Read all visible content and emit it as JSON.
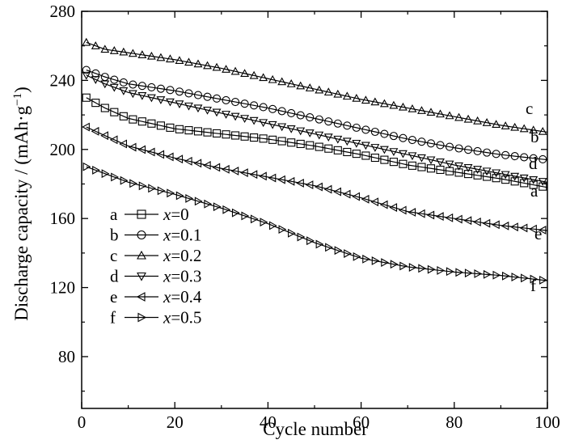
{
  "chart_data": {
    "type": "line",
    "xlabel": "Cycle number",
    "ylabel": "Discharge capacity / (mAh·g",
    "ylabel_sup": "−1",
    "ylabel_close": ")",
    "xlim": [
      0,
      100
    ],
    "ylim": [
      50,
      280
    ],
    "xticks": [
      0,
      20,
      40,
      60,
      80,
      100
    ],
    "yticks": [
      80,
      120,
      160,
      200,
      240,
      280
    ],
    "grid": false,
    "legend_position": "left-middle",
    "series": [
      {
        "label": "a",
        "x_prefix": "x",
        "x_value": "=0",
        "marker": "square",
        "curve_label": "a",
        "x": [
          1,
          5,
          10,
          20,
          30,
          40,
          50,
          60,
          70,
          80,
          90,
          100
        ],
        "y": [
          230,
          224,
          218,
          212,
          209,
          206,
          202,
          197,
          191,
          187,
          183,
          178
        ]
      },
      {
        "label": "b",
        "x_prefix": "x",
        "x_value": "=0.1",
        "marker": "circle",
        "curve_label": "b",
        "x": [
          1,
          5,
          10,
          20,
          30,
          40,
          50,
          60,
          70,
          80,
          90,
          100
        ],
        "y": [
          246,
          242,
          238,
          234,
          229,
          224,
          218,
          212,
          206,
          201,
          197,
          194
        ]
      },
      {
        "label": "c",
        "x_prefix": "x",
        "x_value": "=0.2",
        "marker": "triangle-up",
        "curve_label": "c",
        "x": [
          1,
          5,
          10,
          20,
          30,
          40,
          50,
          60,
          70,
          80,
          90,
          100
        ],
        "y": [
          262,
          258,
          256,
          252,
          247,
          241,
          235,
          229,
          224,
          219,
          214,
          210
        ]
      },
      {
        "label": "d",
        "x_prefix": "x",
        "x_value": "=0.3",
        "marker": "triangle-down",
        "curve_label": "d",
        "x": [
          1,
          5,
          10,
          20,
          30,
          40,
          50,
          60,
          70,
          80,
          90,
          100
        ],
        "y": [
          243,
          238,
          233,
          227,
          221,
          215,
          209,
          203,
          197,
          191,
          186,
          181
        ]
      },
      {
        "label": "e",
        "x_prefix": "x",
        "x_value": "=0.4",
        "marker": "triangle-left",
        "curve_label": "e",
        "x": [
          1,
          5,
          10,
          20,
          30,
          40,
          50,
          60,
          70,
          80,
          90,
          100
        ],
        "y": [
          213,
          208,
          202,
          195,
          189,
          184,
          179,
          172,
          164,
          160,
          156,
          153
        ]
      },
      {
        "label": "f",
        "x_prefix": "x",
        "x_value": "=0.5",
        "marker": "triangle-right",
        "curve_label": "f",
        "x": [
          1,
          5,
          10,
          20,
          30,
          40,
          50,
          60,
          70,
          80,
          90,
          100
        ],
        "y": [
          190,
          186,
          181,
          174,
          166,
          157,
          146,
          137,
          132,
          129,
          127,
          124
        ]
      }
    ]
  }
}
